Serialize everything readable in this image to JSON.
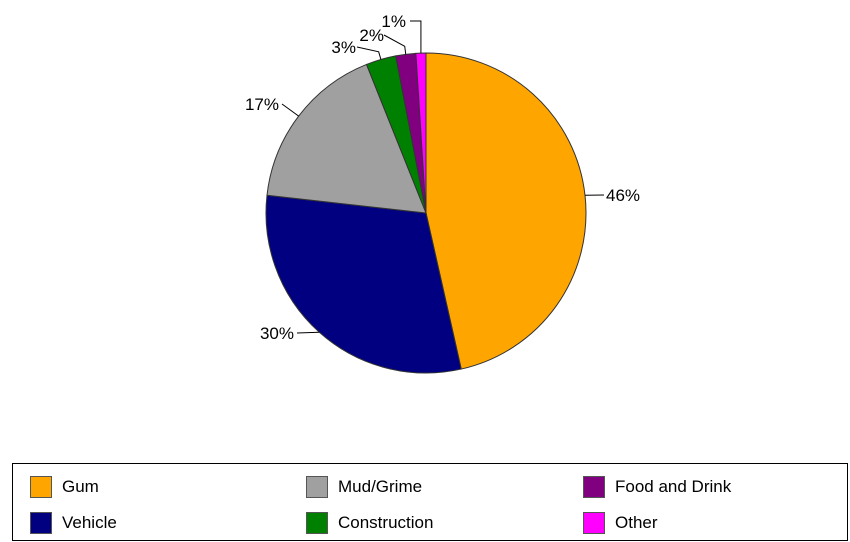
{
  "chart_data": {
    "type": "pie",
    "title": "",
    "legend_position": "bottom",
    "slices": [
      {
        "name": "Gum",
        "value": 46,
        "label": "46%",
        "color": "#FFA500"
      },
      {
        "name": "Vehicle",
        "value": 30,
        "label": "30%",
        "color": "#000080"
      },
      {
        "name": "Mud/Grime",
        "value": 17,
        "label": "17%",
        "color": "#A0A0A0"
      },
      {
        "name": "Construction",
        "value": 3,
        "label": "3%",
        "color": "#008000"
      },
      {
        "name": "Food and Drink",
        "value": 2,
        "label": "2%",
        "color": "#800080"
      },
      {
        "name": "Other",
        "value": 1,
        "label": "1%",
        "color": "#FF00FF"
      }
    ]
  },
  "legend": {
    "items": [
      {
        "label": "Gum",
        "color": "#FFA500"
      },
      {
        "label": "Mud/Grime",
        "color": "#A0A0A0"
      },
      {
        "label": "Food and Drink",
        "color": "#800080"
      },
      {
        "label": "Vehicle",
        "color": "#000080"
      },
      {
        "label": "Construction",
        "color": "#008000"
      },
      {
        "label": "Other",
        "color": "#FF00FF"
      }
    ]
  }
}
